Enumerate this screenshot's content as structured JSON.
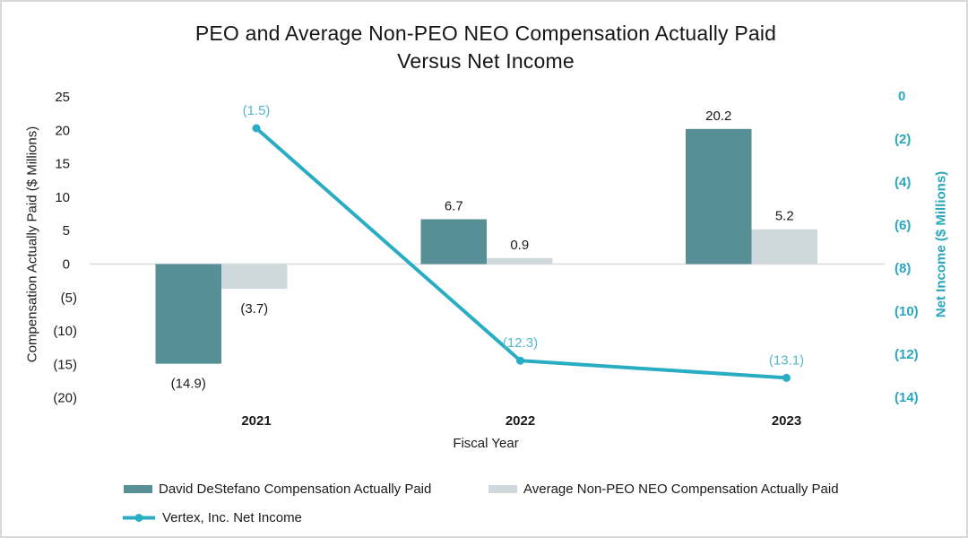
{
  "window": {
    "background": "#ffffff",
    "border_color": "#d8d8d8"
  },
  "chart_data": {
    "type": "bar",
    "subtype": "combo-bar-line",
    "title_line1": "PEO and Average Non-PEO NEO Compensation Actually Paid",
    "title_line2": "Versus Net Income",
    "categories": [
      "2021",
      "2022",
      "2023"
    ],
    "x_axis_title": "Fiscal Year",
    "left_axis": {
      "title": "Compensation Actually Paid ($ Millions)",
      "tick_labels": [
        "25",
        "20",
        "15",
        "10",
        "5",
        "0",
        "(5)",
        "(10)",
        "(15)",
        "(20)"
      ],
      "tick_values": [
        25,
        20,
        15,
        10,
        5,
        0,
        -5,
        -10,
        -15,
        -20
      ],
      "range": [
        -20,
        25
      ],
      "color": "#1a1a1a"
    },
    "right_axis": {
      "title": "Net Income ($ Millions)",
      "tick_labels": [
        "0",
        "(2)",
        "(4)",
        "(6)",
        "(8)",
        "(10)",
        "(12)",
        "(14)"
      ],
      "tick_values": [
        0,
        -2,
        -4,
        -6,
        -8,
        -10,
        -12,
        -14
      ],
      "range": [
        -14,
        0
      ],
      "color": "#2aa7bd"
    },
    "series": [
      {
        "name": "David DeStefano Compensation Actually Paid",
        "type": "bar",
        "axis": "left",
        "color": "#578f96",
        "values": [
          -14.9,
          6.7,
          20.2
        ],
        "data_labels": [
          "(14.9)",
          "6.7",
          "20.2"
        ],
        "label_color": "#1a1a1a"
      },
      {
        "name": "Average Non-PEO NEO Compensation Actually Paid",
        "type": "bar",
        "axis": "left",
        "color": "#cfd9dc",
        "values": [
          -3.7,
          0.9,
          5.2
        ],
        "data_labels": [
          "(3.7)",
          "0.9",
          "5.2"
        ],
        "label_color": "#1a1a1a"
      },
      {
        "name": "Vertex, Inc. Net Income",
        "type": "line",
        "axis": "right",
        "color": "#29adc2",
        "values": [
          -1.5,
          -12.3,
          -13.1
        ],
        "data_labels": [
          "(1.5)",
          "(12.3)",
          "(13.1)"
        ],
        "label_color": "#56b7cb"
      }
    ],
    "gridline_color": "#d9d9d9",
    "legend_position": "bottom",
    "grid": "zero-line-only"
  }
}
